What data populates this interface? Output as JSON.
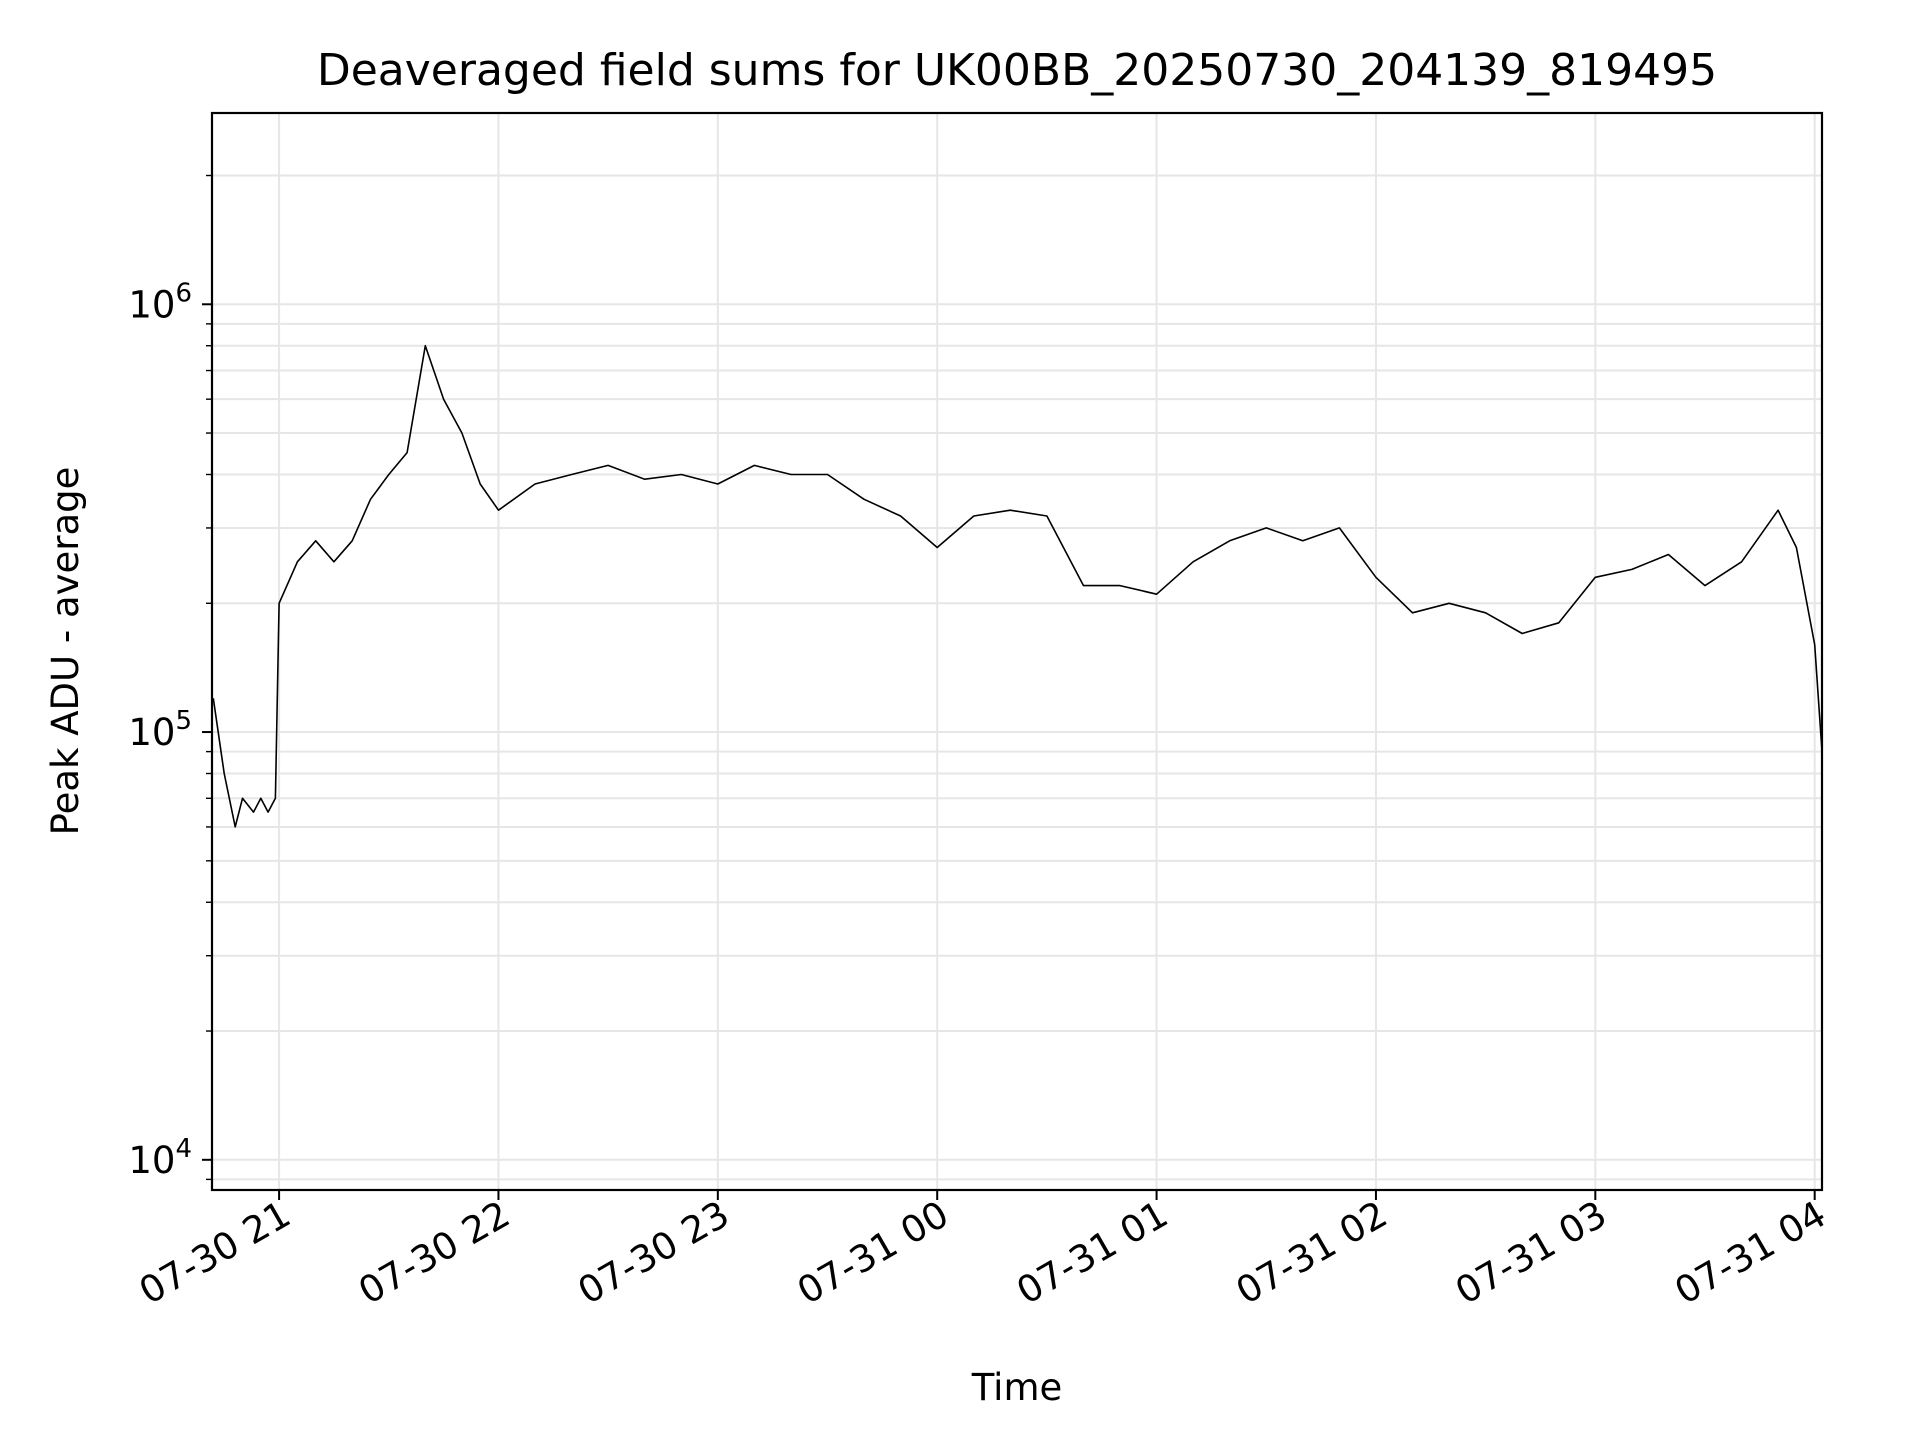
{
  "chart_data": {
    "type": "line",
    "title": "Deaveraged field sums for UK00BB_20250730_204139_819495",
    "xlabel": "Time",
    "ylabel": "Peak ADU - average",
    "yscale": "log",
    "ylim": [
      8500,
      2800000
    ],
    "xlim": [
      "2025-07-30 20:41:39",
      "2025-07-31 04:02:00"
    ],
    "grid": true,
    "line_color": "#000000",
    "grid_color": "#e6e6e6",
    "x_ticks": [
      "07-30 21",
      "07-30 22",
      "07-30 23",
      "07-31 00",
      "07-31 01",
      "07-31 02",
      "07-31 03",
      "07-31 04"
    ],
    "x_tick_times": [
      "2025-07-30 21:00",
      "2025-07-30 22:00",
      "2025-07-30 23:00",
      "2025-07-31 00:00",
      "2025-07-31 01:00",
      "2025-07-31 02:00",
      "2025-07-31 03:00",
      "2025-07-31 04:00"
    ],
    "y_ticks": [
      {
        "value": 10000,
        "base": "10",
        "exp": "4"
      },
      {
        "value": 100000,
        "base": "10",
        "exp": "5"
      },
      {
        "value": 1000000,
        "base": "10",
        "exp": "6"
      }
    ],
    "series": [
      {
        "x": [
          "2025-07-30 20:42",
          "2025-07-30 20:45",
          "2025-07-30 20:48",
          "2025-07-30 20:50",
          "2025-07-30 20:53",
          "2025-07-30 20:55",
          "2025-07-30 20:57",
          "2025-07-30 20:59",
          "2025-07-30 21:00",
          "2025-07-30 21:05",
          "2025-07-30 21:10",
          "2025-07-30 21:15",
          "2025-07-30 21:20",
          "2025-07-30 21:25",
          "2025-07-30 21:30",
          "2025-07-30 21:35",
          "2025-07-30 21:40",
          "2025-07-30 21:45",
          "2025-07-30 21:50",
          "2025-07-30 21:55",
          "2025-07-30 22:00",
          "2025-07-30 22:10",
          "2025-07-30 22:20",
          "2025-07-30 22:30",
          "2025-07-30 22:40",
          "2025-07-30 22:50",
          "2025-07-30 23:00",
          "2025-07-30 23:10",
          "2025-07-30 23:20",
          "2025-07-30 23:30",
          "2025-07-30 23:40",
          "2025-07-30 23:50",
          "2025-07-31 00:00",
          "2025-07-31 00:10",
          "2025-07-31 00:20",
          "2025-07-31 00:30",
          "2025-07-31 00:40",
          "2025-07-31 00:50",
          "2025-07-31 01:00",
          "2025-07-31 01:10",
          "2025-07-31 01:20",
          "2025-07-31 01:30",
          "2025-07-31 01:40",
          "2025-07-31 01:50",
          "2025-07-31 02:00",
          "2025-07-31 02:10",
          "2025-07-31 02:20",
          "2025-07-31 02:30",
          "2025-07-31 02:40",
          "2025-07-31 02:50",
          "2025-07-31 03:00",
          "2025-07-31 03:10",
          "2025-07-31 03:20",
          "2025-07-31 03:30",
          "2025-07-31 03:40",
          "2025-07-31 03:50",
          "2025-07-31 03:55",
          "2025-07-31 04:00",
          "2025-07-31 04:02"
        ],
        "values": [
          120000,
          80000,
          60000,
          70000,
          65000,
          70000,
          65000,
          70000,
          200000,
          250000,
          280000,
          250000,
          280000,
          350000,
          400000,
          450000,
          800000,
          600000,
          500000,
          380000,
          330000,
          380000,
          400000,
          420000,
          390000,
          400000,
          380000,
          420000,
          400000,
          400000,
          350000,
          320000,
          270000,
          320000,
          330000,
          320000,
          220000,
          220000,
          210000,
          250000,
          280000,
          300000,
          280000,
          300000,
          230000,
          190000,
          200000,
          190000,
          170000,
          180000,
          230000,
          240000,
          260000,
          220000,
          250000,
          330000,
          270000,
          160000,
          90000
        ]
      }
    ]
  }
}
